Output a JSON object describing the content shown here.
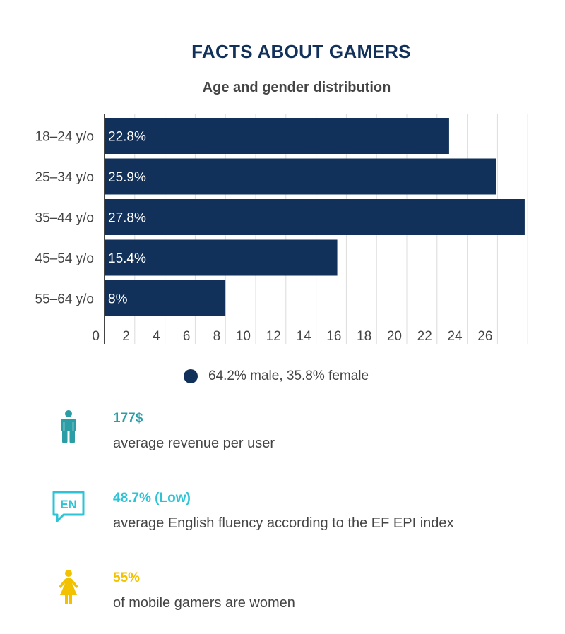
{
  "header": {
    "title": "FACTS ABOUT GAMERS",
    "subtitle": "Age and gender distribution"
  },
  "chart_data": {
    "type": "bar",
    "orientation": "horizontal",
    "categories": [
      "18–24 y/o",
      "25–34 y/o",
      "35–44 y/o",
      "45–54 y/o",
      "55–64 y/o"
    ],
    "values": [
      22.8,
      25.9,
      27.8,
      15.4,
      8
    ],
    "data_labels": [
      "22.8%",
      "25.9%",
      "27.8%",
      "15.4%",
      "8%"
    ],
    "xticks": [
      0,
      2,
      4,
      6,
      8,
      10,
      12,
      14,
      16,
      18,
      20,
      22,
      24,
      26
    ],
    "xlim": [
      0,
      28
    ],
    "grid": true,
    "bar_color": "#12315a",
    "legend": {
      "label": "64.2% male, 35.8% female",
      "placement": "bottom-center"
    }
  },
  "stats": [
    {
      "icon": "male-person-icon",
      "value": "177$",
      "description": "average revenue per user",
      "color": "#2a9da5"
    },
    {
      "icon": "en-speech-bubble-icon",
      "value": "48.7% (Low)",
      "description": "average English fluency according to the EF EPI index",
      "color": "#2ec4d6"
    },
    {
      "icon": "female-person-icon",
      "value": "55%",
      "description": "of mobile gamers are women",
      "color": "#f2c200"
    }
  ]
}
